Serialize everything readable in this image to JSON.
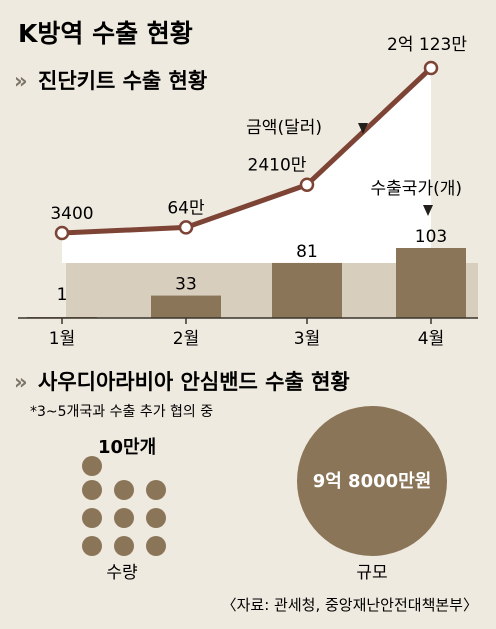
{
  "title": "K방역 수출 현황",
  "section1": {
    "marker": "»",
    "title": "진단키트 수출 현황"
  },
  "section2": {
    "marker": "»",
    "title": "사우디아라비아 안심밴드 수출 현황",
    "note": "*3~5개국과 수출 추가 협의 중"
  },
  "line_series_label": "금액(달러)",
  "bar_series_label": "수출국가(개)",
  "quantity": {
    "value_label": "10만개",
    "label": "수량"
  },
  "scale": {
    "value_label": "9억 8000만원",
    "label": "규모"
  },
  "source": "〈자료: 관세청, 중앙재난안전대책본부〉",
  "colors": {
    "background": "#efeadf",
    "line": "#7d4436",
    "bar": "#8b7558",
    "bar_band": "#d8cebd",
    "white_area": "#ffffff",
    "circle": "#8b7558"
  },
  "chart_data": {
    "type": "bar",
    "categories": [
      "1월",
      "2월",
      "3월",
      "4월"
    ],
    "series": [
      {
        "name": "수출국가(개)",
        "type": "bar",
        "values": [
          1,
          33,
          81,
          103
        ],
        "labels": [
          "1",
          "33",
          "81",
          "103"
        ]
      },
      {
        "name": "금액(달러)",
        "type": "line",
        "values": [
          3400,
          640000,
          24100000,
          201230000
        ],
        "labels": [
          "3400",
          "64만",
          "2410만",
          "2억 123만"
        ]
      }
    ]
  }
}
